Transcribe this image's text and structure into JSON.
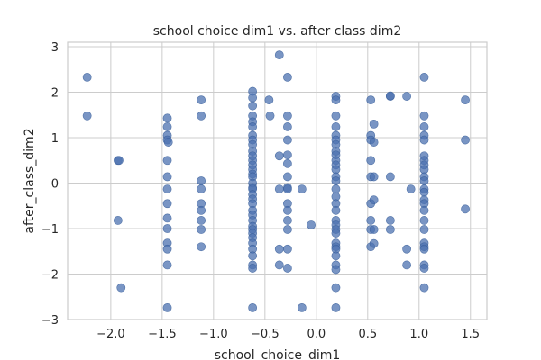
{
  "chart_data": {
    "type": "scatter",
    "title": "school choice dim1 vs. after class dim2",
    "xlabel": "school_choice_dim1",
    "ylabel": "after_class_dim2",
    "xlim": [
      -2.42,
      1.66
    ],
    "ylim": [
      -3.0,
      3.1
    ],
    "xticks": [
      -2.0,
      -1.5,
      -1.0,
      -0.5,
      0.0,
      0.5,
      1.0,
      1.5
    ],
    "xtick_labels": [
      "−2.0",
      "−1.5",
      "−1.0",
      "−0.5",
      "0.0",
      "0.5",
      "1.0",
      "1.5"
    ],
    "yticks": [
      -3,
      -2,
      -1,
      0,
      1,
      2,
      3
    ],
    "ytick_labels": [
      "−3",
      "−2",
      "−1",
      "0",
      "1",
      "2",
      "3"
    ],
    "grid": true,
    "legend": "none",
    "point_color": "#4c72b0",
    "points": [
      [
        -2.23,
        2.33
      ],
      [
        -2.23,
        1.48
      ],
      [
        -1.93,
        0.5
      ],
      [
        -1.92,
        0.5
      ],
      [
        -1.93,
        -0.82
      ],
      [
        -1.9,
        -2.3
      ],
      [
        -1.45,
        1.43
      ],
      [
        -1.45,
        1.24
      ],
      [
        -1.45,
        1.05
      ],
      [
        -1.45,
        0.95
      ],
      [
        -1.44,
        0.9
      ],
      [
        -1.45,
        0.5
      ],
      [
        -1.45,
        0.14
      ],
      [
        -1.45,
        -0.13
      ],
      [
        -1.45,
        -0.45
      ],
      [
        -1.45,
        -0.77
      ],
      [
        -1.45,
        -1.0
      ],
      [
        -1.45,
        -1.32
      ],
      [
        -1.45,
        -1.45
      ],
      [
        -1.45,
        -1.8
      ],
      [
        -1.45,
        -2.74
      ],
      [
        -1.12,
        1.83
      ],
      [
        -1.12,
        1.48
      ],
      [
        -1.12,
        0.05
      ],
      [
        -1.12,
        -0.13
      ],
      [
        -1.12,
        -0.45
      ],
      [
        -1.12,
        -0.6
      ],
      [
        -1.12,
        -0.82
      ],
      [
        -1.12,
        -1.02
      ],
      [
        -1.12,
        -1.4
      ],
      [
        -0.62,
        2.02
      ],
      [
        -0.62,
        1.88
      ],
      [
        -0.62,
        1.7
      ],
      [
        -0.62,
        1.48
      ],
      [
        -0.62,
        1.35
      ],
      [
        -0.62,
        1.24
      ],
      [
        -0.62,
        1.05
      ],
      [
        -0.62,
        0.95
      ],
      [
        -0.62,
        0.85
      ],
      [
        -0.62,
        0.7
      ],
      [
        -0.62,
        0.6
      ],
      [
        -0.62,
        0.5
      ],
      [
        -0.62,
        0.4
      ],
      [
        -0.62,
        0.3
      ],
      [
        -0.62,
        0.2
      ],
      [
        -0.62,
        0.14
      ],
      [
        -0.62,
        0.0
      ],
      [
        -0.62,
        -0.1
      ],
      [
        -0.62,
        -0.13
      ],
      [
        -0.62,
        -0.25
      ],
      [
        -0.62,
        -0.35
      ],
      [
        -0.62,
        -0.45
      ],
      [
        -0.62,
        -0.6
      ],
      [
        -0.62,
        -0.7
      ],
      [
        -0.62,
        -0.82
      ],
      [
        -0.62,
        -0.95
      ],
      [
        -0.62,
        -1.02
      ],
      [
        -0.62,
        -1.1
      ],
      [
        -0.62,
        -1.2
      ],
      [
        -0.62,
        -1.32
      ],
      [
        -0.62,
        -1.45
      ],
      [
        -0.62,
        -1.6
      ],
      [
        -0.62,
        -1.8
      ],
      [
        -0.62,
        -1.87
      ],
      [
        -0.62,
        -2.74
      ],
      [
        -0.46,
        1.83
      ],
      [
        -0.45,
        1.48
      ],
      [
        -0.36,
        2.82
      ],
      [
        -0.36,
        0.6
      ],
      [
        -0.36,
        -0.13
      ],
      [
        -0.36,
        -1.45
      ],
      [
        -0.36,
        -1.8
      ],
      [
        -0.28,
        2.33
      ],
      [
        -0.28,
        1.48
      ],
      [
        -0.28,
        1.24
      ],
      [
        -0.28,
        0.95
      ],
      [
        -0.28,
        0.62
      ],
      [
        -0.28,
        0.43
      ],
      [
        -0.28,
        0.14
      ],
      [
        -0.28,
        -0.1
      ],
      [
        -0.28,
        -0.13
      ],
      [
        -0.28,
        -0.45
      ],
      [
        -0.28,
        -0.6
      ],
      [
        -0.28,
        -0.82
      ],
      [
        -0.28,
        -1.02
      ],
      [
        -0.28,
        -1.45
      ],
      [
        -0.28,
        -1.87
      ],
      [
        -0.14,
        -0.13
      ],
      [
        -0.14,
        -2.74
      ],
      [
        -0.05,
        -0.92
      ],
      [
        0.19,
        1.91
      ],
      [
        0.19,
        1.83
      ],
      [
        0.19,
        1.48
      ],
      [
        0.19,
        1.24
      ],
      [
        0.19,
        1.05
      ],
      [
        0.19,
        0.95
      ],
      [
        0.19,
        0.85
      ],
      [
        0.19,
        0.7
      ],
      [
        0.19,
        0.62
      ],
      [
        0.19,
        0.5
      ],
      [
        0.19,
        0.4
      ],
      [
        0.19,
        0.3
      ],
      [
        0.19,
        0.14
      ],
      [
        0.19,
        0.05
      ],
      [
        0.19,
        -0.13
      ],
      [
        0.19,
        -0.3
      ],
      [
        0.19,
        -0.45
      ],
      [
        0.19,
        -0.6
      ],
      [
        0.19,
        -0.82
      ],
      [
        0.19,
        -0.92
      ],
      [
        0.19,
        -1.02
      ],
      [
        0.19,
        -1.1
      ],
      [
        0.19,
        -1.32
      ],
      [
        0.19,
        -1.4
      ],
      [
        0.19,
        -1.45
      ],
      [
        0.19,
        -1.6
      ],
      [
        0.19,
        -1.8
      ],
      [
        0.19,
        -1.9
      ],
      [
        0.19,
        -2.3
      ],
      [
        0.19,
        -2.74
      ],
      [
        0.53,
        1.83
      ],
      [
        0.53,
        1.05
      ],
      [
        0.53,
        0.95
      ],
      [
        0.53,
        0.5
      ],
      [
        0.53,
        0.14
      ],
      [
        0.53,
        -0.45
      ],
      [
        0.53,
        -0.82
      ],
      [
        0.53,
        -1.02
      ],
      [
        0.53,
        -1.4
      ],
      [
        0.56,
        1.3
      ],
      [
        0.56,
        0.9
      ],
      [
        0.56,
        0.14
      ],
      [
        0.56,
        -0.37
      ],
      [
        0.56,
        -1.02
      ],
      [
        0.56,
        -1.33
      ],
      [
        0.72,
        1.91
      ],
      [
        0.72,
        1.92
      ],
      [
        0.72,
        0.14
      ],
      [
        0.72,
        -0.82
      ],
      [
        0.72,
        -1.02
      ],
      [
        0.88,
        1.91
      ],
      [
        0.88,
        -1.45
      ],
      [
        0.88,
        -1.8
      ],
      [
        0.92,
        -0.13
      ],
      [
        1.05,
        2.33
      ],
      [
        1.05,
        1.48
      ],
      [
        1.05,
        1.24
      ],
      [
        1.05,
        1.05
      ],
      [
        1.05,
        0.95
      ],
      [
        1.05,
        0.6
      ],
      [
        1.05,
        0.5
      ],
      [
        1.05,
        0.4
      ],
      [
        1.05,
        0.3
      ],
      [
        1.05,
        0.14
      ],
      [
        1.05,
        0.05
      ],
      [
        1.05,
        -0.13
      ],
      [
        1.05,
        -0.2
      ],
      [
        1.05,
        -0.37
      ],
      [
        1.05,
        -0.45
      ],
      [
        1.05,
        -0.6
      ],
      [
        1.05,
        -0.82
      ],
      [
        1.05,
        -1.02
      ],
      [
        1.05,
        -1.32
      ],
      [
        1.05,
        -1.4
      ],
      [
        1.05,
        -1.45
      ],
      [
        1.05,
        -1.8
      ],
      [
        1.05,
        -1.87
      ],
      [
        1.05,
        -2.3
      ],
      [
        1.45,
        1.83
      ],
      [
        1.45,
        0.95
      ],
      [
        1.45,
        -0.57
      ]
    ]
  }
}
